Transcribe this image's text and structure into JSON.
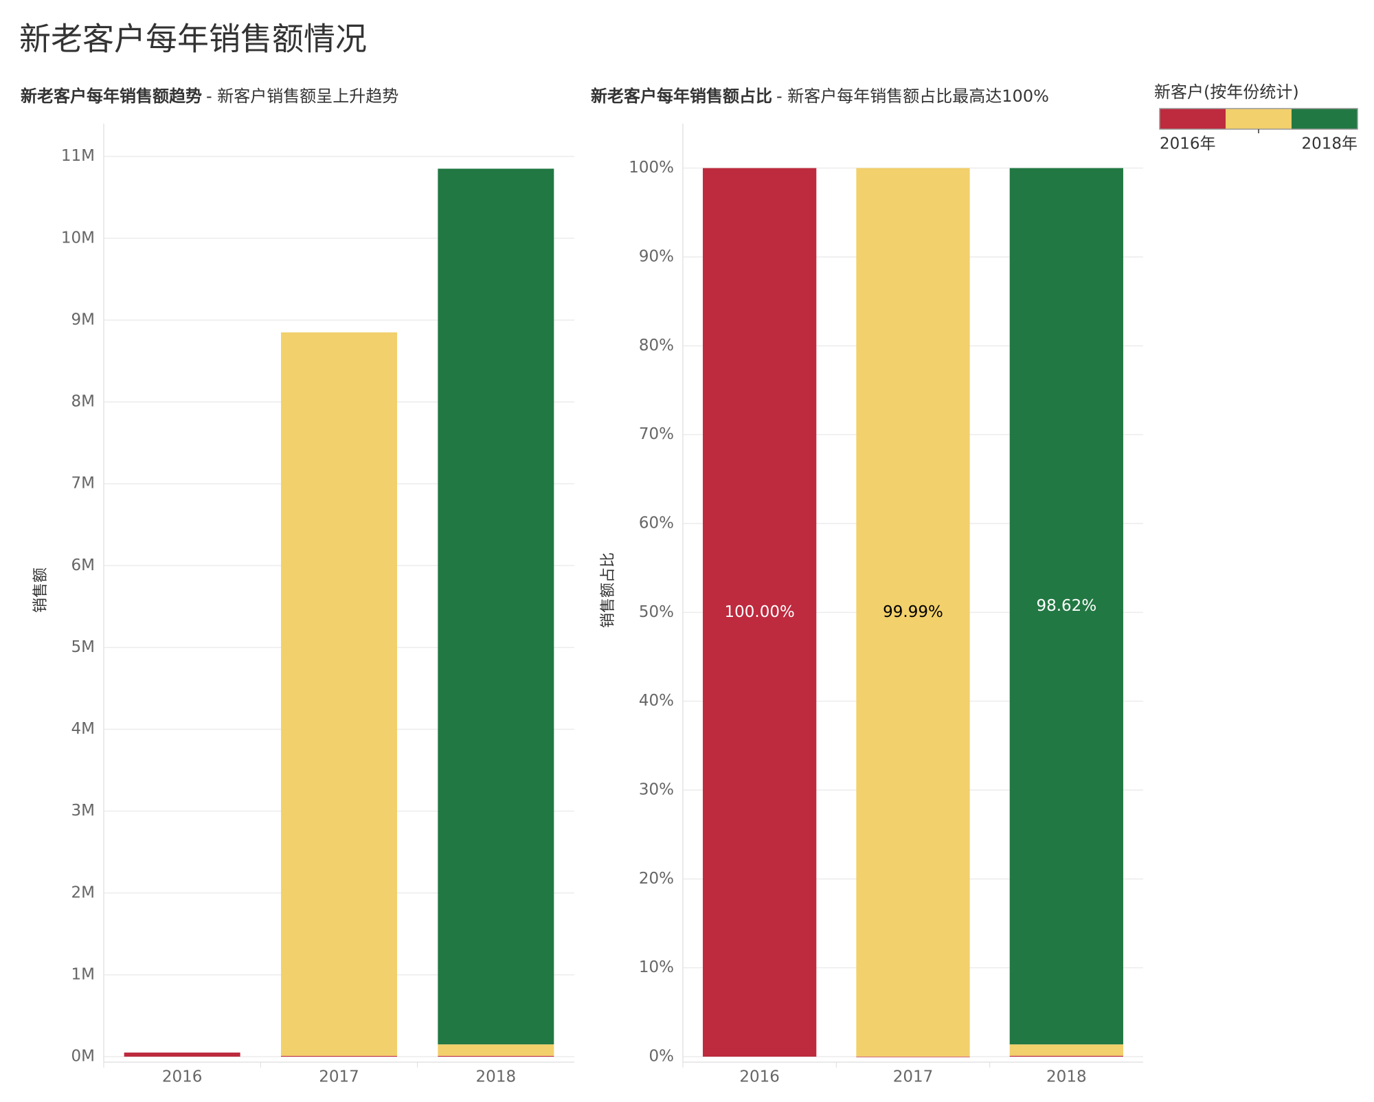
{
  "title": "新老客户每年销售额情况",
  "chart_data": [
    {
      "type": "bar",
      "stacked": true,
      "title": "新老客户每年销售额趋势",
      "subtitle": "- 新客户销售额呈上升趋势",
      "y_label": "销售额",
      "categories": [
        "2016",
        "2017",
        "2018"
      ],
      "series": [
        {
          "name": "2016年",
          "color": "#be2a3e",
          "values": [
            0.05,
            0.01,
            0.01
          ]
        },
        {
          "name": null,
          "color": "#f2d06b",
          "values": [
            null,
            8.84,
            0.14
          ]
        },
        {
          "name": "2018年",
          "color": "#227843",
          "values": [
            null,
            null,
            10.7
          ]
        }
      ],
      "legend_title": "新客户(按年份统计)",
      "ylim": [
        0,
        11.4
      ],
      "yticks": [
        {
          "value": 0,
          "label": "0M"
        },
        {
          "value": 1,
          "label": "1M"
        },
        {
          "value": 2,
          "label": "2M"
        },
        {
          "value": 3,
          "label": "3M"
        },
        {
          "value": 4,
          "label": "4M"
        },
        {
          "value": 5,
          "label": "5M"
        },
        {
          "value": 6,
          "label": "6M"
        },
        {
          "value": 7,
          "label": "7M"
        },
        {
          "value": 8,
          "label": "8M"
        },
        {
          "value": 9,
          "label": "9M"
        },
        {
          "value": 10,
          "label": "10M"
        },
        {
          "value": 11,
          "label": "11M"
        }
      ],
      "grid": true
    },
    {
      "type": "bar",
      "stacked": true,
      "title": "新老客户每年销售额占比",
      "subtitle": "- 新客户每年销售额占比最高达100%",
      "y_label": "销售额占比",
      "categories": [
        "2016",
        "2017",
        "2018"
      ],
      "series": [
        {
          "name": "2016年",
          "color": "#be2a3e",
          "values": [
            100,
            0.01,
            0.1
          ],
          "value_labels": [
            "100.00%",
            null,
            null
          ]
        },
        {
          "name": null,
          "color": "#f2d06b",
          "values": [
            null,
            99.99,
            1.28
          ],
          "value_labels": [
            null,
            "99.99%",
            null
          ]
        },
        {
          "name": "2018年",
          "color": "#227843",
          "values": [
            null,
            null,
            98.62
          ],
          "value_labels": [
            null,
            null,
            "98.62%"
          ]
        }
      ],
      "ylim": [
        0,
        105
      ],
      "yticks": [
        {
          "value": 0,
          "label": "0%"
        },
        {
          "value": 10,
          "label": "10%"
        },
        {
          "value": 20,
          "label": "20%"
        },
        {
          "value": 30,
          "label": "30%"
        },
        {
          "value": 40,
          "label": "40%"
        },
        {
          "value": 50,
          "label": "50%"
        },
        {
          "value": 60,
          "label": "60%"
        },
        {
          "value": 70,
          "label": "70%"
        },
        {
          "value": 80,
          "label": "80%"
        },
        {
          "value": 90,
          "label": "90%"
        },
        {
          "value": 100,
          "label": "100%"
        }
      ],
      "grid": true
    }
  ]
}
